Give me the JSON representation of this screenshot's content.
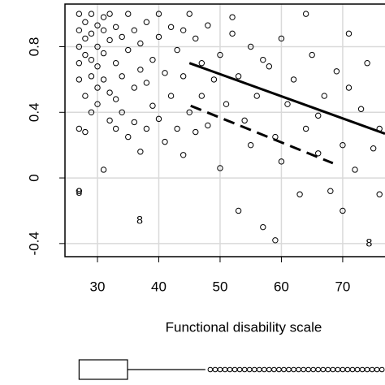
{
  "chart_data": {
    "type": "scatter",
    "x_label": "Functional disability scale",
    "xlim": [
      24.7,
      76.9
    ],
    "ylim": [
      -0.48,
      1.06
    ],
    "xticks": [
      30,
      40,
      50,
      60,
      70
    ],
    "yticks": [
      -0.4,
      0.0,
      0.4,
      0.8
    ],
    "grid": true,
    "series": [
      {
        "marker": "circle",
        "color": "#000000",
        "x": [
          27,
          27,
          27,
          27,
          27,
          27,
          27,
          28,
          28,
          28,
          28,
          28,
          29,
          29,
          29,
          29,
          29,
          30,
          30,
          30,
          30,
          30,
          31,
          31,
          31,
          31,
          32,
          32,
          32,
          32,
          33,
          33,
          33,
          33,
          34,
          34,
          34,
          35,
          35,
          35,
          36,
          36,
          36,
          37,
          37,
          37,
          38,
          38,
          38,
          39,
          39,
          40,
          40,
          40,
          41,
          41,
          42,
          42,
          43,
          43,
          44,
          44,
          45,
          45,
          46,
          46,
          47,
          47,
          48,
          48,
          49,
          50,
          50,
          51,
          52,
          53,
          53,
          54,
          55,
          55,
          56,
          57,
          58,
          59,
          60,
          60,
          61,
          62,
          63,
          64,
          65,
          66,
          67,
          68,
          69,
          70,
          71,
          72,
          73,
          74,
          75,
          76,
          31,
          44,
          52,
          57,
          59,
          64,
          66,
          70,
          71,
          76
        ],
        "values": [
          1,
          0.9,
          0.8,
          0.7,
          0.6,
          0.3,
          -0.08,
          0.95,
          0.85,
          0.75,
          0.5,
          0.28,
          1,
          0.88,
          0.72,
          0.62,
          0.4,
          0.93,
          0.8,
          0.68,
          0.55,
          0.45,
          0.9,
          0.76,
          0.6,
          0.05,
          1,
          0.84,
          0.52,
          0.35,
          0.92,
          0.7,
          0.48,
          0.3,
          0.86,
          0.62,
          0.4,
          1,
          0.78,
          0.25,
          0.9,
          0.55,
          0.34,
          0.82,
          0.66,
          0.16,
          0.95,
          0.58,
          0.3,
          0.72,
          0.44,
          1,
          0.86,
          0.36,
          0.64,
          0.22,
          0.92,
          0.5,
          0.78,
          0.3,
          0.62,
          0.14,
          1,
          0.4,
          0.85,
          0.28,
          0.7,
          0.5,
          0.93,
          0.32,
          0.6,
          0.75,
          0.06,
          0.45,
          0.88,
          0.62,
          -0.2,
          0.35,
          0.8,
          0.2,
          0.5,
          -0.3,
          0.68,
          0.25,
          0.85,
          0.1,
          0.45,
          0.6,
          -0.1,
          0.3,
          0.75,
          0.15,
          0.5,
          -0.08,
          0.65,
          0.2,
          0.88,
          0.05,
          0.42,
          0.7,
          0.18,
          -0.1,
          0.98,
          0.9,
          0.98,
          0.72,
          -0.38,
          1,
          0.38,
          -0.2,
          0.55,
          0.3
        ]
      },
      {
        "marker": "8",
        "color": "#000000",
        "x": [
          27,
          36.9,
          74.3
        ],
        "values": [
          -0.09,
          -0.26,
          -0.4
        ]
      }
    ],
    "lines": [
      {
        "style": "solid",
        "x": [
          45,
          76.9
        ],
        "values": [
          0.7,
          0.27
        ]
      },
      {
        "style": "dashed",
        "x": [
          45.2,
          68.4
        ],
        "values": [
          0.44,
          0.09
        ]
      }
    ],
    "boxplot": {
      "q1": 27,
      "q3": 34.9,
      "whisker_high": 47.6,
      "outliers": [
        48.4,
        49.2,
        50,
        50.8,
        51.6,
        52.4,
        53.2,
        54,
        54.8,
        55.6,
        56.4,
        57.2,
        58,
        58.8,
        59.6,
        60.4,
        61.2,
        62,
        62.8,
        63.6,
        64.4,
        65.2,
        66,
        66.8,
        67.6,
        68.4,
        69.2,
        70,
        70.8,
        71.6,
        72.4,
        73.2,
        74,
        74.8,
        75.6,
        76.4
      ]
    }
  }
}
